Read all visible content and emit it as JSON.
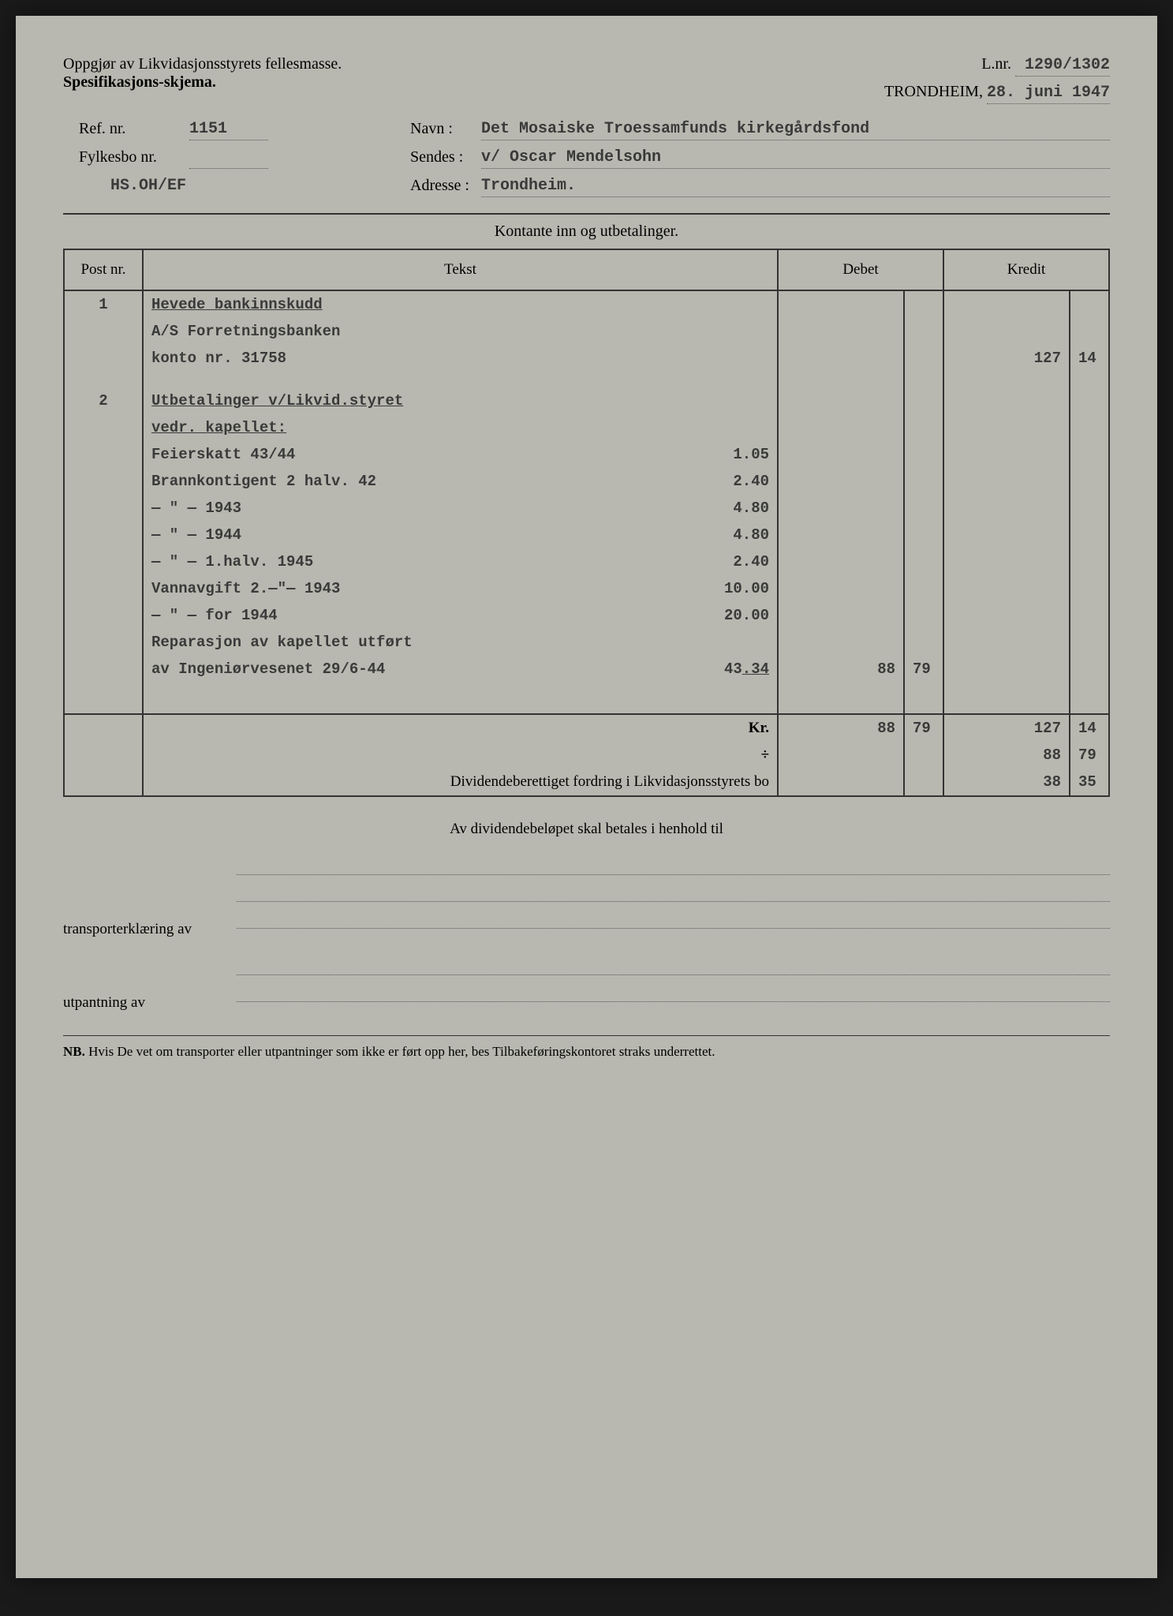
{
  "header": {
    "title_line1": "Oppgjør av Likvidasjonsstyrets fellesmasse.",
    "title_line2": "Spesifikasjons-skjema.",
    "lnr_label": "L.nr.",
    "lnr_value": "1290/1302",
    "city": "TRONDHEIM,",
    "date": "28. juni 1947"
  },
  "meta": {
    "ref_label": "Ref. nr.",
    "ref_value": "1151",
    "navn_label": "Navn :",
    "navn_value": "Det Mosaiske Troessamfunds kirkegårdsfond",
    "fylkesbo_label": "Fylkesbo nr.",
    "fylkesbo_value": "",
    "sendes_label": "Sendes :",
    "sendes_value": "v/ Oscar Mendelsohn",
    "code": "HS.OH/EF",
    "adresse_label": "Adresse :",
    "adresse_value": "Trondheim."
  },
  "table": {
    "section_title": "Kontante inn og utbetalinger.",
    "headers": {
      "post": "Post nr.",
      "tekst": "Tekst",
      "debet": "Debet",
      "kredit": "Kredit"
    },
    "rows": [
      {
        "post": "1",
        "text": "Hevede bankinnskudd",
        "underline": true
      },
      {
        "text": "A/S Forretningsbanken"
      },
      {
        "text": "konto nr. 31758",
        "kredit_int": "127",
        "kredit_dec": "14"
      },
      {
        "spacer": true
      },
      {
        "post": "2",
        "text": "Utbetalinger v/Likvid.styret",
        "underline": true
      },
      {
        "text": "vedr. kapellet:",
        "underline": true
      },
      {
        "text": "Feierskatt 43/44",
        "sub_int": "1",
        "sub_dec": "05"
      },
      {
        "text": "Brannkontigent 2 halv. 42",
        "sub_int": "2",
        "sub_dec": "40"
      },
      {
        "text": "—   \"   —           1943",
        "sub_int": "4",
        "sub_dec": "80"
      },
      {
        "text": "—   \"   —           1944",
        "sub_int": "4",
        "sub_dec": "80"
      },
      {
        "text": "—   \"   —  1.halv. 1945",
        "sub_int": "2",
        "sub_dec": "40"
      },
      {
        "text": "Vannavgift   2.—\"—   1943",
        "sub_int": "10",
        "sub_dec": "00"
      },
      {
        "text": "—   \"   —   for   1944",
        "sub_int": "20",
        "sub_dec": "00"
      },
      {
        "text": "Reparasjon av kapellet utført"
      },
      {
        "text": "av Ingeniørvesenet 29/6-44",
        "sub_int": "43",
        "sub_dec": "34",
        "sub_underline": true,
        "debet_int": "88",
        "debet_dec": "79"
      },
      {
        "spacer": true
      },
      {
        "spacer": true
      }
    ],
    "totals": {
      "kr_label": "Kr.",
      "debet_int": "88",
      "debet_dec": "79",
      "kredit_int": "127",
      "kredit_dec": "14",
      "minus_label": "÷",
      "minus_int": "88",
      "minus_dec": "79",
      "dividend_label": "Dividendeberettiget fordring i Likvidasjonsstyrets bo",
      "result_int": "38",
      "result_dec": "35"
    }
  },
  "footer": {
    "center_text": "Av dividendebeløpet skal betales i henhold til",
    "transport_label": "transporterklæring av",
    "utpantning_label": "utpantning          av",
    "nb_label": "NB.",
    "nb_text": "Hvis De vet om transporter eller utpantninger som ikke er ført opp her, bes Tilbakeføringskontoret straks underrettet."
  },
  "colors": {
    "page_bg": "#b8b8b0",
    "text": "#2a2a2a",
    "typed": "#3a3a3a",
    "border": "#333333"
  }
}
